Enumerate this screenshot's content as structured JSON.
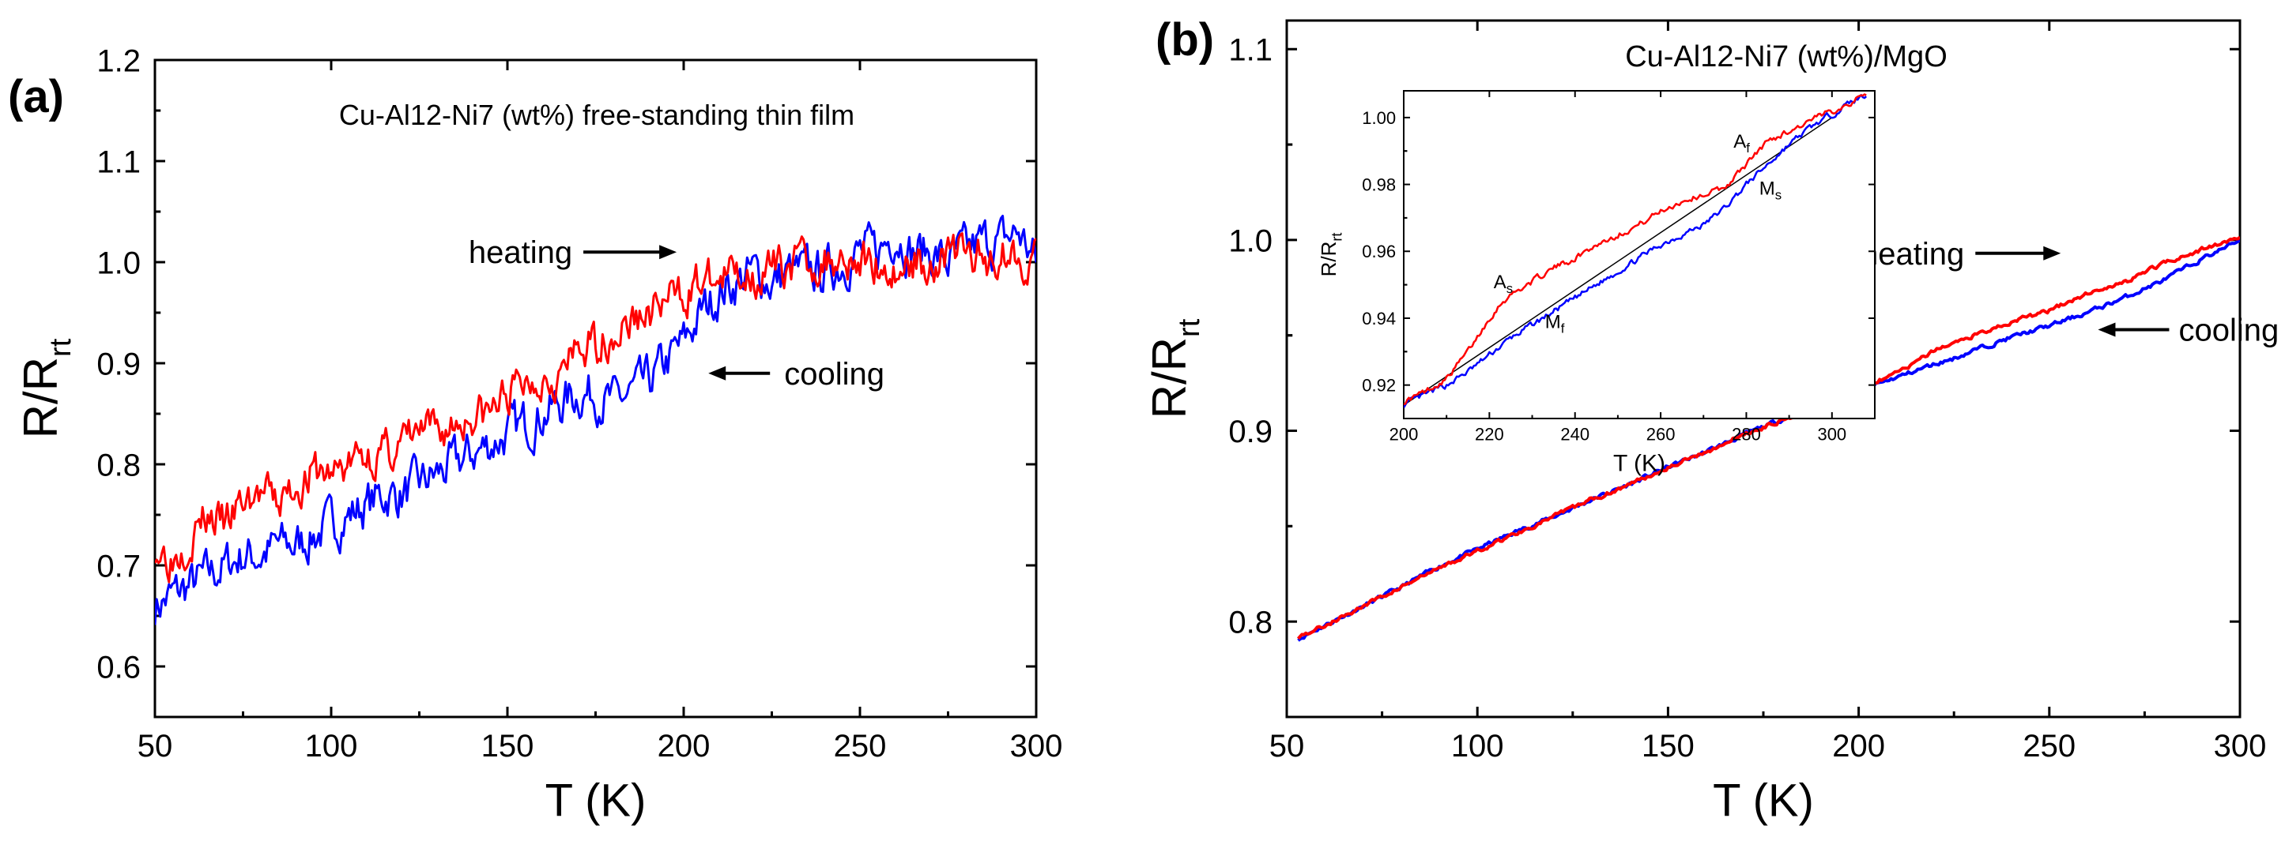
{
  "chart_data": [
    {
      "panel_label": "(a)",
      "type": "line",
      "title": "Cu-Al12-Ni7 (wt%) free-standing thin film",
      "xlabel": "T (K)",
      "ylabel": {
        "main": "R/R",
        "sub": "rt"
      },
      "xlim": [
        50,
        300
      ],
      "ylim": [
        0.55,
        1.2
      ],
      "xticks": [
        "50",
        "100",
        "150",
        "200",
        "250",
        "300"
      ],
      "yticks": [
        "0.6",
        "0.7",
        "0.8",
        "0.9",
        "1.0",
        "1.1",
        "1.2"
      ],
      "annotations": [
        {
          "text": "heating",
          "x": 198,
          "y": 1.01
        },
        {
          "text": "cooling",
          "x": 207,
          "y": 0.89
        }
      ],
      "series": [
        {
          "name": "heating",
          "color": "#ff0000",
          "x": [
            50,
            55,
            60,
            65,
            70,
            75,
            80,
            85,
            90,
            95,
            100,
            105,
            110,
            115,
            120,
            125,
            130,
            135,
            140,
            145,
            150,
            155,
            160,
            165,
            170,
            175,
            180,
            185,
            190,
            195,
            200,
            205,
            210,
            215,
            220,
            225,
            230,
            235,
            240,
            245,
            250,
            255,
            260,
            265,
            270,
            275,
            280,
            285,
            290,
            295,
            300
          ],
          "y": [
            0.72,
            0.71,
            0.73,
            0.75,
            0.74,
            0.76,
            0.77,
            0.76,
            0.78,
            0.79,
            0.79,
            0.8,
            0.81,
            0.81,
            0.82,
            0.83,
            0.83,
            0.84,
            0.85,
            0.85,
            0.87,
            0.88,
            0.89,
            0.89,
            0.91,
            0.92,
            0.93,
            0.94,
            0.95,
            0.96,
            0.97,
            0.98,
            0.98,
            0.99,
            0.99,
            0.99,
            1.0,
            1.0,
            1.0,
            1.01,
            1.0,
            1.0,
            0.99,
            1.0,
            1.0,
            1.01,
            1.01,
            1.0,
            1.01,
            1.01,
            1.0
          ],
          "noise": 0.028
        },
        {
          "name": "cooling",
          "color": "#0000ff",
          "x": [
            50,
            55,
            60,
            65,
            70,
            75,
            80,
            85,
            90,
            95,
            100,
            105,
            110,
            115,
            120,
            125,
            130,
            135,
            140,
            145,
            150,
            155,
            160,
            165,
            170,
            175,
            180,
            185,
            190,
            195,
            200,
            205,
            210,
            215,
            220,
            225,
            230,
            235,
            240,
            245,
            250,
            255,
            260,
            265,
            270,
            275,
            280,
            285,
            290,
            295,
            300
          ],
          "y": [
            0.66,
            0.67,
            0.68,
            0.69,
            0.7,
            0.71,
            0.71,
            0.72,
            0.72,
            0.73,
            0.74,
            0.75,
            0.76,
            0.77,
            0.77,
            0.78,
            0.79,
            0.8,
            0.81,
            0.82,
            0.83,
            0.84,
            0.85,
            0.86,
            0.87,
            0.87,
            0.86,
            0.87,
            0.88,
            0.9,
            0.92,
            0.95,
            0.97,
            0.98,
            0.99,
            0.98,
            0.99,
            0.99,
            0.99,
            1.0,
            1.01,
            1.01,
            1.03,
            1.01,
            1.01,
            1.0,
            1.01,
            1.02,
            1.02,
            1.03,
            1.0
          ],
          "noise": 0.03
        }
      ]
    },
    {
      "panel_label": "(b)",
      "type": "line",
      "title": "Cu-Al12-Ni7 (wt%)/MgO",
      "xlabel": "T (K)",
      "ylabel": {
        "main": "R/R",
        "sub": "rt"
      },
      "xlim": [
        50,
        300
      ],
      "ylim": [
        0.75,
        1.115
      ],
      "xticks": [
        "50",
        "100",
        "150",
        "200",
        "250",
        "300"
      ],
      "yticks": [
        "0.8",
        "0.9",
        "1.0",
        "1.1"
      ],
      "annotations": [
        {
          "text": "heating",
          "x": 253,
          "y": 0.993
        },
        {
          "text": "cooling",
          "x": 269,
          "y": 0.953
        }
      ],
      "series": [
        {
          "name": "heating",
          "color": "#ff0000",
          "x": [
            53,
            60,
            70,
            80,
            90,
            100,
            110,
            120,
            130,
            140,
            150,
            160,
            170,
            180,
            190,
            200,
            210,
            220,
            225,
            230,
            240,
            250,
            260,
            270,
            280,
            290,
            300
          ],
          "y": [
            0.792,
            0.798,
            0.808,
            0.818,
            0.828,
            0.837,
            0.846,
            0.855,
            0.864,
            0.872,
            0.881,
            0.889,
            0.898,
            0.906,
            0.914,
            0.922,
            0.93,
            0.942,
            0.946,
            0.95,
            0.957,
            0.963,
            0.972,
            0.978,
            0.988,
            0.995,
            1.001
          ],
          "noise": 0.0015
        },
        {
          "name": "cooling",
          "color": "#0000ff",
          "x": [
            53,
            60,
            70,
            80,
            90,
            100,
            110,
            120,
            130,
            140,
            150,
            160,
            170,
            180,
            190,
            200,
            210,
            220,
            225,
            230,
            240,
            250,
            260,
            270,
            280,
            290,
            300
          ],
          "y": [
            0.791,
            0.798,
            0.808,
            0.818,
            0.829,
            0.838,
            0.847,
            0.855,
            0.864,
            0.872,
            0.881,
            0.889,
            0.898,
            0.906,
            0.914,
            0.921,
            0.928,
            0.935,
            0.938,
            0.942,
            0.949,
            0.955,
            0.962,
            0.97,
            0.979,
            0.99,
            1.0
          ],
          "noise": 0.0015
        }
      ],
      "inset": {
        "type": "line",
        "xlabel": "T (K)",
        "ylabel": {
          "main": "R/R",
          "sub": "rt"
        },
        "xlim": [
          200,
          310
        ],
        "ylim": [
          0.91,
          1.008
        ],
        "xticks": [
          "200",
          "220",
          "240",
          "260",
          "280",
          "300"
        ],
        "yticks": [
          "0.92",
          "0.94",
          "0.96",
          "0.98",
          "1.00"
        ],
        "annotations": [
          {
            "main": "A",
            "sub": "s",
            "x": 221,
            "y": 0.949
          },
          {
            "main": "M",
            "sub": "f",
            "x": 233,
            "y": 0.937
          },
          {
            "main": "A",
            "sub": "f",
            "x": 277,
            "y": 0.991
          },
          {
            "main": "M",
            "sub": "s",
            "x": 283,
            "y": 0.977
          }
        ],
        "reference_line": {
          "x": [
            200,
            300
          ],
          "y": [
            0.914,
            1.0
          ]
        },
        "series": [
          {
            "name": "heating",
            "color": "#ff0000",
            "x": [
              200,
              205,
              210,
              215,
              220,
              223,
              225,
              230,
              235,
              240,
              245,
              250,
              255,
              260,
              265,
              270,
              275,
              280,
              285,
              290,
              295,
              300,
              305,
              308
            ],
            "y": [
              0.915,
              0.918,
              0.922,
              0.93,
              0.94,
              0.945,
              0.947,
              0.951,
              0.955,
              0.958,
              0.962,
              0.965,
              0.968,
              0.972,
              0.975,
              0.977,
              0.979,
              0.986,
              0.993,
              0.996,
              0.999,
              1.002,
              1.005,
              1.007
            ],
            "noise": 0.0012
          },
          {
            "name": "cooling",
            "color": "#0000ff",
            "x": [
              200,
              205,
              210,
              215,
              220,
              225,
              230,
              235,
              240,
              245,
              250,
              255,
              260,
              265,
              270,
              275,
              280,
              285,
              290,
              295,
              300,
              305,
              308
            ],
            "y": [
              0.914,
              0.917,
              0.92,
              0.924,
              0.929,
              0.934,
              0.938,
              0.942,
              0.946,
              0.95,
              0.954,
              0.958,
              0.962,
              0.965,
              0.968,
              0.973,
              0.98,
              0.986,
              0.992,
              0.997,
              1.001,
              1.005,
              1.007
            ],
            "noise": 0.0012
          }
        ]
      }
    }
  ]
}
